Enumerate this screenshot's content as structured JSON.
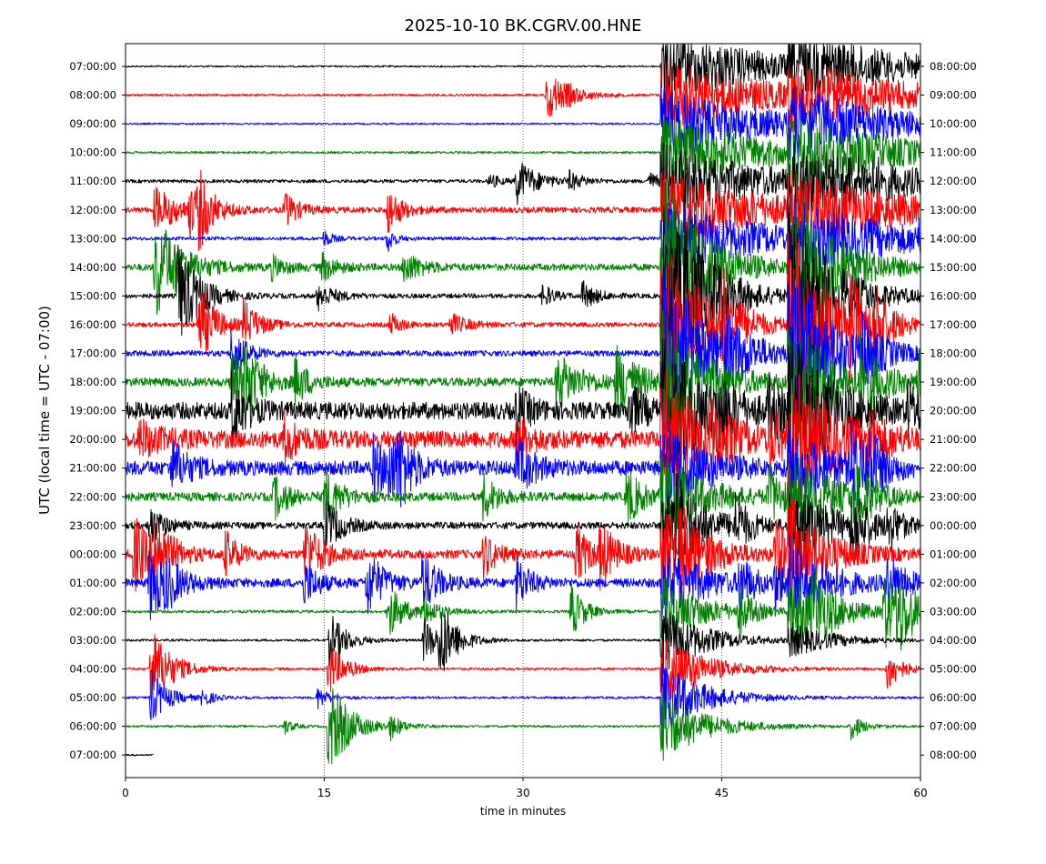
{
  "chart_data": {
    "type": "line",
    "title": "2025-10-10 BK.CGRV.00.HNE",
    "xlabel": "time in minutes",
    "ylabel": "UTC (local time = UTC - 07:00)",
    "xlim": [
      0,
      60
    ],
    "xticks": [
      "0",
      "15",
      "30",
      "45",
      "60"
    ],
    "grid": "vertical dotted at 15, 30, 45",
    "left_ticks": [
      "07:00:00",
      "08:00:00",
      "09:00:00",
      "10:00:00",
      "11:00:00",
      "12:00:00",
      "13:00:00",
      "14:00:00",
      "15:00:00",
      "16:00:00",
      "17:00:00",
      "18:00:00",
      "19:00:00",
      "20:00:00",
      "21:00:00",
      "22:00:00",
      "23:00:00",
      "00:00:00",
      "01:00:00",
      "02:00:00",
      "03:00:00",
      "04:00:00",
      "05:00:00",
      "06:00:00",
      "07:00:00"
    ],
    "right_ticks": [
      "08:00:00",
      "09:00:00",
      "10:00:00",
      "11:00:00",
      "12:00:00",
      "13:00:00",
      "14:00:00",
      "15:00:00",
      "16:00:00",
      "17:00:00",
      "18:00:00",
      "19:00:00",
      "20:00:00",
      "21:00:00",
      "22:00:00",
      "23:00:00",
      "00:00:00",
      "01:00:00",
      "02:00:00",
      "03:00:00",
      "04:00:00",
      "05:00:00",
      "06:00:00",
      "07:00:00",
      "08:00:00"
    ],
    "series_colors": [
      "#000000",
      "#ff0000",
      "#0000ff",
      "#008000"
    ],
    "traces": [
      {
        "row": 0,
        "end": 60,
        "noise": 0.03,
        "events": [
          [
            40.4,
            1.3,
            8,
            0.04
          ],
          [
            50.0,
            1.0,
            8,
            0.05
          ]
        ]
      },
      {
        "row": 1,
        "end": 60,
        "noise": 0.04,
        "events": [
          [
            31.8,
            0.9,
            1.5,
            0.3
          ],
          [
            33.4,
            0.15,
            0.6,
            0.5
          ],
          [
            40.4,
            1.3,
            8,
            0.04
          ],
          [
            50.0,
            1.0,
            8,
            0.05
          ]
        ]
      },
      {
        "row": 2,
        "end": 60,
        "noise": 0.03,
        "events": [
          [
            40.4,
            1.3,
            8,
            0.04
          ],
          [
            50.0,
            1.0,
            8,
            0.05
          ]
        ]
      },
      {
        "row": 3,
        "end": 60,
        "noise": 0.04,
        "events": [
          [
            51.8,
            0.2,
            0.8,
            0.4
          ],
          [
            40.4,
            1.3,
            8,
            0.04
          ],
          [
            50.0,
            1.0,
            8,
            0.05
          ]
        ]
      },
      {
        "row": 4,
        "end": 60,
        "noise": 0.06,
        "events": [
          [
            29.5,
            0.8,
            1.5,
            0.3
          ],
          [
            27.5,
            0.25,
            0.8,
            0.4
          ],
          [
            33.5,
            0.3,
            1.0,
            0.3
          ],
          [
            39.5,
            0.3,
            1.0,
            0.3
          ],
          [
            54.5,
            0.3,
            0.8,
            0.3
          ],
          [
            56.5,
            0.3,
            0.8,
            0.3
          ],
          [
            40.4,
            1.3,
            8,
            0.04
          ],
          [
            50.0,
            1.0,
            8,
            0.05
          ]
        ]
      },
      {
        "row": 5,
        "end": 60,
        "noise": 0.1,
        "events": [
          [
            2.2,
            0.8,
            1.8,
            0.25
          ],
          [
            4.8,
            0.8,
            1.0,
            0.25
          ],
          [
            5.5,
            1.0,
            1.0,
            0.3
          ],
          [
            12.0,
            0.6,
            1.0,
            0.3
          ],
          [
            19.8,
            0.8,
            1.0,
            0.3
          ],
          [
            40.4,
            1.3,
            8,
            0.04
          ],
          [
            50.0,
            1.0,
            8,
            0.05
          ]
        ]
      },
      {
        "row": 6,
        "end": 60,
        "noise": 0.06,
        "events": [
          [
            15.0,
            0.3,
            0.6,
            0.4
          ],
          [
            19.8,
            0.5,
            0.5,
            0.4
          ],
          [
            59.8,
            0.4,
            0.5,
            0.4
          ],
          [
            40.4,
            1.3,
            8,
            0.04
          ],
          [
            50.0,
            1.0,
            8,
            0.05
          ]
        ]
      },
      {
        "row": 7,
        "end": 60,
        "noise": 0.12,
        "events": [
          [
            2.2,
            2.0,
            1.8,
            0.2
          ],
          [
            11.0,
            0.4,
            1.0,
            0.3
          ],
          [
            14.8,
            0.5,
            1.0,
            0.3
          ],
          [
            21.0,
            0.6,
            1.2,
            0.3
          ],
          [
            40.4,
            3.5,
            3,
            0.06
          ],
          [
            50.0,
            3.5,
            3,
            0.06
          ]
        ]
      },
      {
        "row": 8,
        "end": 60,
        "noise": 0.08,
        "events": [
          [
            3.9,
            2.0,
            1.5,
            0.2
          ],
          [
            14.5,
            0.5,
            1.2,
            0.3
          ],
          [
            31.5,
            0.4,
            0.8,
            0.4
          ],
          [
            34.5,
            0.5,
            1.0,
            0.3
          ],
          [
            40.4,
            3.5,
            3,
            0.06
          ],
          [
            42.2,
            1.0,
            1.5,
            0.2
          ],
          [
            44.5,
            0.3,
            1.0,
            0.3
          ],
          [
            50.0,
            3.5,
            3,
            0.06
          ]
        ]
      },
      {
        "row": 9,
        "end": 60,
        "noise": 0.08,
        "events": [
          [
            5.5,
            1.5,
            1.2,
            0.25
          ],
          [
            8.9,
            0.8,
            1.2,
            0.3
          ],
          [
            20.0,
            0.4,
            0.8,
            0.4
          ],
          [
            24.5,
            0.4,
            1.2,
            0.3
          ],
          [
            40.4,
            3.5,
            3,
            0.06
          ],
          [
            45.0,
            1.5,
            1.0,
            0.25
          ],
          [
            50.0,
            3.5,
            3,
            0.06
          ],
          [
            54.5,
            1.3,
            1.2,
            0.25
          ],
          [
            56.5,
            1.0,
            1.0,
            0.25
          ]
        ]
      },
      {
        "row": 10,
        "end": 60,
        "noise": 0.1,
        "events": [
          [
            8.0,
            1.0,
            1.0,
            0.25
          ],
          [
            40.4,
            3.5,
            3,
            0.06
          ],
          [
            45.0,
            1.0,
            1.8,
            0.2
          ],
          [
            55.5,
            1.0,
            1.2,
            0.25
          ],
          [
            50.0,
            3.5,
            3,
            0.06
          ]
        ]
      },
      {
        "row": 11,
        "end": 60,
        "noise": 0.15,
        "events": [
          [
            8.0,
            1.3,
            1.2,
            0.25
          ],
          [
            9.0,
            1.0,
            1.2,
            0.25
          ],
          [
            12.8,
            0.8,
            1.0,
            0.3
          ],
          [
            32.5,
            1.0,
            1.8,
            0.2
          ],
          [
            37.0,
            1.2,
            1.8,
            0.2
          ],
          [
            40.4,
            2.5,
            3,
            0.06
          ],
          [
            50.0,
            2.5,
            3,
            0.06
          ],
          [
            55.5,
            1.3,
            1.2,
            0.25
          ],
          [
            59.8,
            1.3,
            1.0,
            0.25
          ]
        ]
      },
      {
        "row": 12,
        "end": 60,
        "noise": 0.3,
        "events": [
          [
            8.0,
            1.3,
            1.0,
            0.25
          ],
          [
            29.5,
            0.8,
            1.0,
            0.3
          ],
          [
            38.0,
            1.0,
            1.0,
            0.3
          ],
          [
            40.4,
            2.5,
            3,
            0.06
          ],
          [
            44.8,
            0.8,
            1.0,
            0.3
          ],
          [
            48.5,
            1.0,
            1.2,
            0.25
          ],
          [
            50.0,
            2.5,
            3,
            0.06
          ],
          [
            59.0,
            0.8,
            1.0,
            0.3
          ]
        ]
      },
      {
        "row": 13,
        "end": 60,
        "noise": 0.3,
        "events": [
          [
            1.0,
            0.6,
            1.5,
            0.2
          ],
          [
            12.0,
            0.8,
            1.0,
            0.3
          ],
          [
            29.5,
            0.8,
            1.0,
            0.3
          ],
          [
            40.4,
            2.5,
            3,
            0.06
          ],
          [
            44.0,
            0.8,
            1.0,
            0.3
          ],
          [
            48.5,
            0.9,
            1.2,
            0.25
          ],
          [
            50.0,
            2.5,
            3,
            0.06
          ],
          [
            56.0,
            0.8,
            1.0,
            0.3
          ]
        ]
      },
      {
        "row": 14,
        "end": 60,
        "noise": 0.25,
        "events": [
          [
            3.4,
            1.0,
            1.2,
            0.25
          ],
          [
            18.7,
            1.0,
            1.2,
            0.25
          ],
          [
            19.8,
            1.0,
            1.0,
            0.3
          ],
          [
            20.6,
            1.0,
            1.0,
            0.3
          ],
          [
            29.5,
            1.0,
            1.2,
            0.25
          ],
          [
            40.4,
            1.5,
            3,
            0.06
          ],
          [
            50.0,
            1.5,
            3,
            0.06
          ],
          [
            54.8,
            1.3,
            1.2,
            0.25
          ],
          [
            56.0,
            0.9,
            1.0,
            0.3
          ]
        ]
      },
      {
        "row": 15,
        "end": 60,
        "noise": 0.15,
        "events": [
          [
            11.2,
            0.8,
            1.0,
            0.3
          ],
          [
            15.0,
            1.0,
            1.2,
            0.25
          ],
          [
            27.0,
            0.8,
            1.0,
            0.3
          ],
          [
            37.8,
            1.0,
            1.2,
            0.25
          ],
          [
            40.4,
            1.5,
            3,
            0.06
          ],
          [
            48.5,
            1.0,
            1.2,
            0.25
          ],
          [
            50.0,
            1.5,
            3,
            0.06
          ],
          [
            55.0,
            1.2,
            1.2,
            0.25
          ]
        ]
      },
      {
        "row": 16,
        "end": 60,
        "noise": 0.12,
        "events": [
          [
            1.8,
            0.8,
            1.0,
            0.3
          ],
          [
            15.0,
            1.0,
            1.2,
            0.25
          ],
          [
            40.4,
            1.5,
            3,
            0.06
          ],
          [
            41.5,
            1.0,
            1.2,
            0.25
          ],
          [
            46.0,
            0.9,
            1.0,
            0.3
          ],
          [
            50.0,
            1.5,
            3,
            0.06
          ],
          [
            54.8,
            1.0,
            1.2,
            0.25
          ],
          [
            57.5,
            0.8,
            1.0,
            0.3
          ]
        ]
      },
      {
        "row": 17,
        "end": 60,
        "noise": 0.15,
        "events": [
          [
            0.6,
            1.3,
            1.5,
            0.2
          ],
          [
            2.2,
            1.0,
            1.2,
            0.25
          ],
          [
            7.5,
            0.8,
            1.0,
            0.3
          ],
          [
            13.5,
            1.2,
            1.2,
            0.25
          ],
          [
            27.0,
            0.8,
            1.0,
            0.3
          ],
          [
            34.0,
            1.0,
            1.2,
            0.25
          ],
          [
            35.8,
            1.0,
            1.2,
            0.25
          ],
          [
            41.8,
            1.0,
            1.2,
            0.25
          ],
          [
            49.0,
            1.3,
            1.2,
            0.25
          ],
          [
            40.4,
            1.5,
            3,
            0.06
          ],
          [
            50.0,
            1.5,
            3,
            0.06
          ]
        ]
      },
      {
        "row": 18,
        "end": 60,
        "noise": 0.15,
        "events": [
          [
            1.8,
            1.3,
            1.5,
            0.25
          ],
          [
            3.0,
            0.5,
            1.0,
            0.3
          ],
          [
            13.5,
            0.8,
            1.0,
            0.3
          ],
          [
            18.2,
            1.2,
            1.2,
            0.25
          ],
          [
            22.4,
            1.0,
            1.2,
            0.25
          ],
          [
            29.5,
            0.9,
            1.0,
            0.3
          ],
          [
            40.4,
            1.3,
            3,
            0.06
          ],
          [
            46.3,
            0.9,
            1.0,
            0.3
          ],
          [
            49.0,
            0.8,
            1.0,
            0.3
          ],
          [
            50.0,
            1.3,
            3,
            0.06
          ],
          [
            57.5,
            1.0,
            1.2,
            0.25
          ]
        ]
      },
      {
        "row": 19,
        "end": 60,
        "noise": 0.05,
        "events": [
          [
            19.8,
            1.0,
            1.2,
            0.25
          ],
          [
            22.4,
            0.5,
            1.2,
            0.25
          ],
          [
            33.6,
            1.0,
            1.0,
            0.3
          ],
          [
            46.3,
            0.8,
            1.0,
            0.3
          ],
          [
            51.8,
            1.0,
            1.2,
            0.25
          ],
          [
            57.2,
            1.3,
            1.5,
            0.2
          ],
          [
            58.2,
            1.0,
            1.5,
            0.2
          ],
          [
            40.4,
            1.3,
            3,
            0.06
          ],
          [
            50.0,
            1.3,
            3,
            0.06
          ]
        ]
      },
      {
        "row": 20,
        "end": 60,
        "noise": 0.04,
        "events": [
          [
            15.4,
            1.0,
            1.2,
            0.25
          ],
          [
            22.5,
            0.8,
            1.2,
            0.25
          ],
          [
            23.7,
            1.3,
            1.2,
            0.25
          ],
          [
            40.4,
            1.3,
            3,
            0.06
          ],
          [
            50.0,
            0.6,
            3,
            0.06
          ]
        ]
      },
      {
        "row": 21,
        "end": 60,
        "noise": 0.04,
        "events": [
          [
            1.9,
            1.5,
            1.5,
            0.25
          ],
          [
            15.3,
            1.0,
            1.2,
            0.25
          ],
          [
            57.5,
            0.8,
            1.0,
            0.3
          ],
          [
            40.4,
            1.3,
            3,
            0.06
          ]
        ]
      },
      {
        "row": 22,
        "end": 60,
        "noise": 0.04,
        "events": [
          [
            1.9,
            1.0,
            1.2,
            0.25
          ],
          [
            5.8,
            0.3,
            0.8,
            0.4
          ],
          [
            14.5,
            0.4,
            0.8,
            0.4
          ],
          [
            40.4,
            1.3,
            3,
            0.06
          ]
        ]
      },
      {
        "row": 23,
        "end": 60,
        "noise": 0.04,
        "events": [
          [
            15.3,
            1.8,
            1.5,
            0.25
          ],
          [
            12.0,
            0.3,
            0.6,
            0.4
          ],
          [
            20.0,
            0.4,
            0.8,
            0.4
          ],
          [
            54.8,
            0.5,
            0.8,
            0.4
          ],
          [
            40.4,
            1.3,
            3,
            0.06
          ]
        ]
      },
      {
        "row": 24,
        "end": 2.1,
        "noise": 0.03,
        "events": []
      }
    ]
  }
}
